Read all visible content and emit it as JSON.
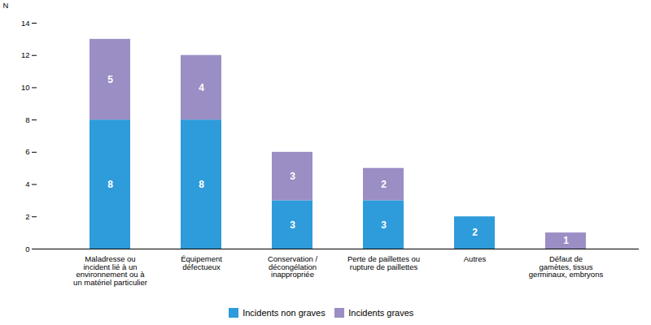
{
  "chart_data": {
    "type": "bar",
    "stacked": true,
    "categories": [
      "Maladresse ou\nincident lié à un\nenvironnement ou à\nun matériel particulier",
      "Équipement\ndéfectueux",
      "Conservation /\ndécongélation\ninappropriée",
      "Perte de paillettes ou\nrupture de paillettes",
      "Autres",
      "Défaut de\ngamètes, tissus\ngerminaux, embryons"
    ],
    "series": [
      {
        "name": "Incidents non graves",
        "color": "#2E9BDA",
        "values": [
          8,
          8,
          3,
          3,
          2,
          0
        ]
      },
      {
        "name": "Incidents graves",
        "color": "#9B8EC4",
        "values": [
          5,
          4,
          3,
          2,
          0,
          1
        ]
      }
    ],
    "ylabel": "N",
    "ylim": [
      0,
      14
    ],
    "yticks": [
      0,
      2,
      4,
      6,
      8,
      10,
      12,
      14
    ],
    "grid": false,
    "legend": "bottom",
    "data_labels": true
  }
}
